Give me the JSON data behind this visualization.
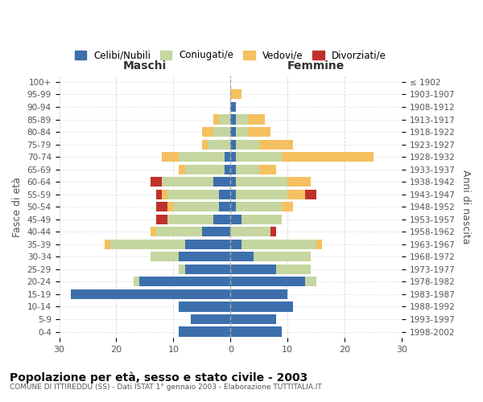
{
  "age_groups": [
    "0-4",
    "5-9",
    "10-14",
    "15-19",
    "20-24",
    "25-29",
    "30-34",
    "35-39",
    "40-44",
    "45-49",
    "50-54",
    "55-59",
    "60-64",
    "65-69",
    "70-74",
    "75-79",
    "80-84",
    "85-89",
    "90-94",
    "95-99",
    "100+"
  ],
  "birth_years": [
    "1998-2002",
    "1993-1997",
    "1988-1992",
    "1983-1987",
    "1978-1982",
    "1973-1977",
    "1968-1972",
    "1963-1967",
    "1958-1962",
    "1953-1957",
    "1948-1952",
    "1943-1947",
    "1938-1942",
    "1933-1937",
    "1928-1932",
    "1923-1927",
    "1918-1922",
    "1913-1917",
    "1908-1912",
    "1903-1907",
    "≤ 1902"
  ],
  "maschi": {
    "celibi": [
      9,
      7,
      9,
      28,
      16,
      8,
      9,
      8,
      5,
      3,
      2,
      2,
      3,
      1,
      1,
      0,
      0,
      0,
      0,
      0,
      0
    ],
    "coniugati": [
      0,
      0,
      0,
      0,
      1,
      1,
      5,
      13,
      8,
      8,
      8,
      9,
      9,
      7,
      8,
      4,
      3,
      2,
      0,
      0,
      0
    ],
    "vedovi": [
      0,
      0,
      0,
      0,
      0,
      0,
      0,
      1,
      1,
      0,
      1,
      1,
      0,
      1,
      3,
      1,
      2,
      1,
      0,
      0,
      0
    ],
    "divorziati": [
      0,
      0,
      0,
      0,
      0,
      0,
      0,
      0,
      0,
      2,
      2,
      1,
      2,
      0,
      0,
      0,
      0,
      0,
      0,
      0,
      0
    ]
  },
  "femmine": {
    "nubili": [
      9,
      8,
      11,
      10,
      13,
      8,
      4,
      2,
      0,
      2,
      1,
      1,
      1,
      1,
      1,
      1,
      1,
      1,
      1,
      0,
      0
    ],
    "coniugate": [
      0,
      0,
      0,
      0,
      2,
      6,
      10,
      13,
      7,
      7,
      8,
      9,
      9,
      4,
      8,
      4,
      2,
      2,
      0,
      0,
      0
    ],
    "vedove": [
      0,
      0,
      0,
      0,
      0,
      0,
      0,
      1,
      0,
      0,
      2,
      3,
      4,
      3,
      16,
      6,
      4,
      3,
      0,
      2,
      0
    ],
    "divorziate": [
      0,
      0,
      0,
      0,
      0,
      0,
      0,
      0,
      1,
      0,
      0,
      2,
      0,
      0,
      0,
      0,
      0,
      0,
      0,
      0,
      0
    ]
  },
  "colors": {
    "celibi": "#3d6fad",
    "coniugati": "#c5d6a0",
    "vedovi": "#f5c060",
    "divorziati": "#c0302a"
  },
  "xlim": 30,
  "title": "Popolazione per età, sesso e stato civile - 2003",
  "subtitle": "COMUNE DI ITTIREDDU (SS) - Dati ISTAT 1° gennaio 2003 - Elaborazione TUTTITALIA.IT",
  "ylabel_left": "Fasce di età",
  "ylabel_right": "Anni di nascita",
  "header_left": "Maschi",
  "header_right": "Femmine"
}
